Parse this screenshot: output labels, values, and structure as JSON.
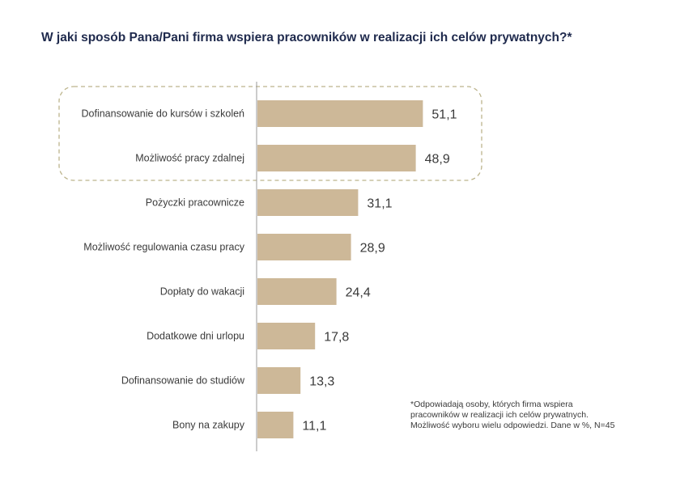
{
  "title": "W jaki sposób Pana/Pani firma wspiera pracowników w realizacji ich celów prywatnych?*",
  "colors": {
    "bar": "#cdb898",
    "highlight_border": "#bcb48c",
    "axis": "#9a9a9a",
    "title": "#1f2a4d"
  },
  "chart_data": {
    "type": "bar",
    "orientation": "horizontal",
    "categories": [
      "Dofinansowanie do kursów i szkoleń",
      "Możliwość pracy zdalnej",
      "Pożyczki pracownicze",
      "Możliwość regulowania czasu pracy",
      "Dopłaty do wakacji",
      "Dodatkowe dni urlopu",
      "Dofinansowanie do studiów",
      "Bony na zakupy"
    ],
    "values": [
      51.1,
      48.9,
      31.1,
      28.9,
      24.4,
      17.8,
      13.3,
      11.1
    ],
    "value_labels": [
      "51,1",
      "48,9",
      "31,1",
      "28,9",
      "24,4",
      "17,8",
      "13,3",
      "11,1"
    ],
    "highlighted_categories": [
      "Dofinansowanie do kursów i szkoleń",
      "Możliwość pracy zdalnej"
    ],
    "xlim": [
      0,
      100
    ],
    "grid": false,
    "legend": false
  },
  "note": [
    "*Odpowiadają osoby, których firma wspiera",
    "pracowników w realizacji ich celów prywatnych.",
    "Możliwość wyboru wielu odpowiedzi. Dane w %, N=45"
  ]
}
